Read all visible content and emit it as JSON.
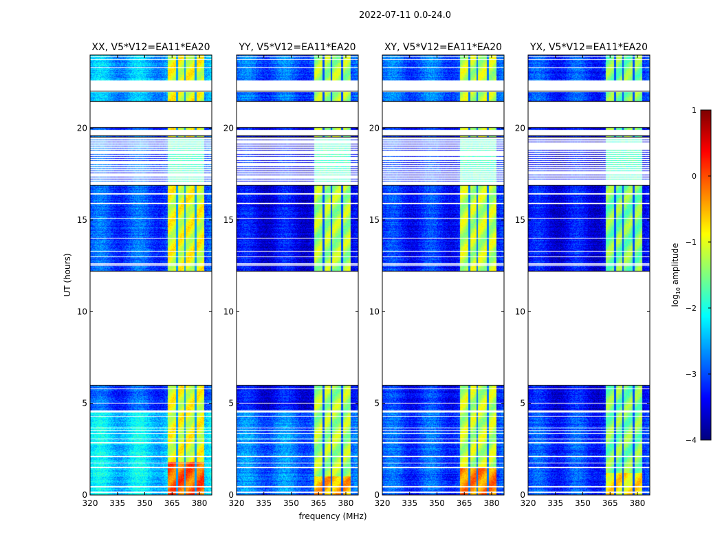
{
  "chart_data": {
    "type": "heatmap",
    "suptitle": "2022-07-11 0.0-24.0",
    "xlabel": "frequency (MHz)",
    "ylabel": "UT (hours)",
    "xlim": [
      320,
      386.8
    ],
    "ylim": [
      0,
      24
    ],
    "xticks": [
      "320",
      "335",
      "350",
      "365",
      "380"
    ],
    "xtick_values": [
      320,
      335,
      350,
      365,
      380
    ],
    "yticks": [
      "0",
      "5",
      "10",
      "15",
      "20"
    ],
    "ytick_values": [
      0,
      5,
      10,
      15,
      20
    ],
    "colorbar": {
      "label": "log10 amplitude",
      "label_main": "log",
      "label_sub": "10",
      "label_rest": " amplitude",
      "range": [
        -4,
        1
      ],
      "ticks": [
        "1",
        "0",
        "−1",
        "−2",
        "−3",
        "−4"
      ],
      "tick_values": [
        1,
        0,
        -1,
        -2,
        -3,
        -4
      ],
      "colormap": "jet"
    },
    "band": {
      "start_mhz": 362.3,
      "end_mhz": 382.6,
      "dividers_mhz": [
        367.5,
        372.0,
        377.7
      ]
    },
    "time_segments": [
      {
        "start": 0.0,
        "end": 4.5,
        "block": "low"
      },
      {
        "start": 4.6,
        "end": 6.0,
        "block": "mid"
      },
      {
        "start": 12.2,
        "end": 16.4,
        "block": "mid"
      },
      {
        "start": 16.45,
        "end": 16.9,
        "block": "mid"
      },
      {
        "start": 17.1,
        "end": 19.4,
        "block": "sparse"
      },
      {
        "start": 19.5,
        "end": 19.6,
        "block": "mid"
      },
      {
        "start": 19.9,
        "end": 20.05,
        "block": "mid"
      },
      {
        "start": 21.45,
        "end": 22.05,
        "block": "top"
      },
      {
        "start": 22.6,
        "end": 24.0,
        "block": "top"
      }
    ],
    "flagged_times": [
      0.15,
      0.45,
      1.5,
      1.75,
      2.1,
      2.85,
      3.05,
      3.35,
      3.5,
      3.65,
      4.3,
      5.0,
      5.8,
      12.5,
      12.6,
      13.0,
      13.3,
      14.0,
      15.1,
      15.9,
      22.0,
      23.3,
      23.75,
      23.9
    ],
    "panels": [
      {
        "title": "XX, V5*V12=EA11*EA20",
        "bg": {
          "low": -2.3,
          "mid": -3.0,
          "top": -2.5
        },
        "band_level": -1.0,
        "band_hot_level": -0.1,
        "hot_until": 1.8
      },
      {
        "title": "YY, V5*V12=EA11*EA20",
        "bg": {
          "low": -2.8,
          "mid": -3.4,
          "top": -2.9
        },
        "band_level": -1.3,
        "band_hot_level": -0.5,
        "hot_until": 1.0
      },
      {
        "title": "XY, V5*V12=EA11*EA20",
        "bg": {
          "low": -3.0,
          "mid": -3.2,
          "top": -2.9
        },
        "band_level": -1.2,
        "band_hot_level": -0.3,
        "hot_until": 1.5
      },
      {
        "title": "YX, V5*V12=EA11*EA20",
        "bg": {
          "low": -3.1,
          "mid": -3.4,
          "top": -3.1
        },
        "band_level": -1.5,
        "band_hot_level": -0.8,
        "hot_until": 1.2
      }
    ]
  }
}
